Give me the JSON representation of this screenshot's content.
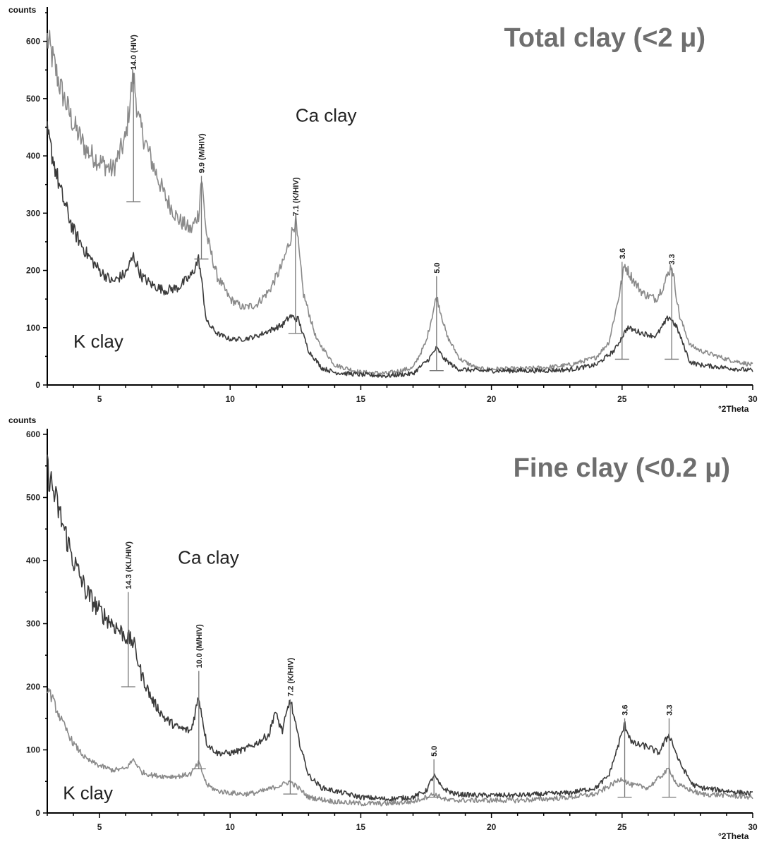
{
  "chart_data": [
    {
      "type": "line",
      "title": "Total clay (<2 μ)",
      "ylabel": "counts",
      "xlabel": "°2Theta",
      "xlim": [
        3,
        30
      ],
      "ylim": [
        0,
        650
      ],
      "xticks": [
        5,
        10,
        15,
        20,
        25,
        30
      ],
      "yticks": [
        0,
        100,
        200,
        300,
        400,
        500,
        600
      ],
      "grid": false,
      "series": [
        {
          "name": "Ca clay",
          "color": "#8a8a8a",
          "x": [
            3,
            3.5,
            4,
            4.5,
            5,
            5.5,
            6,
            6.2,
            6.3,
            6.5,
            7,
            7.5,
            8,
            8.5,
            8.8,
            8.9,
            9.1,
            9.5,
            10,
            10.5,
            11,
            11.5,
            12,
            12.3,
            12.5,
            12.8,
            13.3,
            14,
            15,
            16,
            17,
            17.5,
            17.9,
            18.3,
            18.8,
            19.5,
            20,
            21,
            22,
            23,
            24,
            24.5,
            24.9,
            25.1,
            25.4,
            25.8,
            26.3,
            26.6,
            26.9,
            27.2,
            27.6,
            28,
            29,
            30
          ],
          "y": [
            605,
            520,
            455,
            410,
            390,
            375,
            430,
            510,
            540,
            460,
            390,
            330,
            290,
            270,
            300,
            365,
            260,
            190,
            150,
            135,
            140,
            165,
            210,
            255,
            290,
            160,
            80,
            35,
            22,
            20,
            30,
            75,
            155,
            85,
            45,
            28,
            28,
            28,
            30,
            35,
            48,
            75,
            160,
            210,
            185,
            160,
            150,
            175,
            210,
            120,
            70,
            60,
            45,
            35
          ]
        },
        {
          "name": "K clay",
          "color": "#3a3a3a",
          "x": [
            3,
            3.5,
            4,
            4.5,
            5,
            5.5,
            6,
            6.3,
            6.6,
            7,
            7.5,
            8,
            8.5,
            8.8,
            9.1,
            9.5,
            10,
            10.5,
            11,
            11.5,
            12,
            12.3,
            12.6,
            13,
            13.5,
            14,
            15,
            16,
            17,
            17.6,
            17.9,
            18.2,
            18.7,
            19.5,
            20,
            21,
            22,
            23,
            24,
            24.7,
            25.2,
            25.8,
            26.3,
            26.8,
            27.1,
            27.6,
            28,
            29,
            30
          ],
          "y": [
            440,
            340,
            270,
            230,
            200,
            180,
            195,
            225,
            190,
            175,
            165,
            170,
            190,
            220,
            110,
            90,
            80,
            80,
            85,
            95,
            105,
            120,
            115,
            60,
            30,
            22,
            18,
            16,
            20,
            45,
            65,
            45,
            28,
            25,
            25,
            25,
            25,
            27,
            35,
            60,
            100,
            90,
            85,
            120,
            100,
            40,
            35,
            30,
            25
          ]
        }
      ],
      "annotations": [
        {
          "x": 6.3,
          "label": "14.0 (HIV)",
          "top": 545,
          "bottom": 320
        },
        {
          "x": 8.9,
          "label": "9.9 (M/HIV)",
          "top": 365,
          "bottom": 220
        },
        {
          "x": 12.5,
          "label": "7.1 (K/HIV)",
          "top": 290,
          "bottom": 90
        },
        {
          "x": 17.9,
          "label": "5.0",
          "top": 190,
          "bottom": 25
        },
        {
          "x": 25.0,
          "label": "3.6",
          "top": 215,
          "bottom": 45
        },
        {
          "x": 26.9,
          "label": "3.3",
          "top": 205,
          "bottom": 45
        }
      ],
      "series_labels": [
        {
          "text": "Ca clay",
          "x": 12.5,
          "y": 460
        },
        {
          "text": "K clay",
          "x": 4.0,
          "y": 65
        }
      ]
    },
    {
      "type": "line",
      "title": "Fine clay (<0.2 μ)",
      "ylabel": "counts",
      "xlabel": "°2Theta",
      "xlim": [
        3,
        30
      ],
      "ylim": [
        0,
        600
      ],
      "xticks": [
        5,
        10,
        15,
        20,
        25,
        30
      ],
      "yticks": [
        0,
        100,
        200,
        300,
        400,
        500,
        600
      ],
      "grid": false,
      "series": [
        {
          "name": "Ca clay",
          "color": "#3a3a3a",
          "x": [
            3,
            3.5,
            4,
            4.5,
            5,
            5.5,
            6,
            6.3,
            6.6,
            7,
            7.5,
            8,
            8.5,
            8.8,
            9.1,
            9.5,
            10,
            10.5,
            11,
            11.5,
            11.7,
            12,
            12.3,
            12.6,
            13,
            13.5,
            14,
            15,
            16,
            17,
            17.5,
            17.8,
            18.1,
            18.6,
            19.5,
            20,
            21,
            22,
            23,
            24,
            24.5,
            25.1,
            25.4,
            26,
            26.4,
            26.8,
            27.2,
            27.7,
            28,
            29,
            30
          ],
          "y": [
            545,
            470,
            400,
            350,
            320,
            300,
            280,
            270,
            220,
            180,
            150,
            135,
            130,
            185,
            110,
            95,
            95,
            100,
            110,
            125,
            160,
            130,
            180,
            120,
            60,
            40,
            35,
            25,
            22,
            25,
            35,
            60,
            40,
            30,
            28,
            28,
            28,
            30,
            32,
            40,
            60,
            140,
            110,
            105,
            95,
            125,
            80,
            45,
            40,
            35,
            30
          ]
        },
        {
          "name": "K clay",
          "color": "#8a8a8a",
          "x": [
            3,
            3.5,
            4,
            4.5,
            5,
            5.5,
            6,
            6.3,
            6.6,
            7,
            7.5,
            8,
            8.5,
            8.8,
            9.1,
            9.5,
            10,
            10.5,
            11,
            11.5,
            12,
            12.3,
            12.6,
            13,
            14,
            15,
            16,
            17,
            17.8,
            18.3,
            19,
            20,
            21,
            22,
            23,
            24,
            25,
            25.3,
            26,
            26.8,
            27.1,
            28,
            29,
            30
          ],
          "y": [
            200,
            150,
            110,
            85,
            75,
            68,
            70,
            85,
            65,
            60,
            58,
            58,
            62,
            80,
            45,
            35,
            32,
            30,
            32,
            38,
            45,
            50,
            40,
            25,
            18,
            15,
            15,
            18,
            30,
            20,
            20,
            20,
            20,
            22,
            25,
            30,
            55,
            45,
            40,
            70,
            45,
            30,
            28,
            25
          ]
        }
      ],
      "annotations": [
        {
          "x": 6.1,
          "label": "14.3 (KL/HIV)",
          "top": 350,
          "bottom": 200
        },
        {
          "x": 8.8,
          "label": "10.0 (M/HIV)",
          "top": 225,
          "bottom": 70
        },
        {
          "x": 12.3,
          "label": "7.2 (K/HIV)",
          "top": 180,
          "bottom": 30
        },
        {
          "x": 17.8,
          "label": "5.0",
          "top": 85,
          "bottom": 25
        },
        {
          "x": 25.1,
          "label": "3.6",
          "top": 150,
          "bottom": 25
        },
        {
          "x": 26.8,
          "label": "3.3",
          "top": 150,
          "bottom": 25
        }
      ],
      "series_labels": [
        {
          "text": "Ca clay",
          "x": 8.0,
          "y": 395
        },
        {
          "text": "K clay",
          "x": 3.6,
          "y": 22
        }
      ]
    }
  ]
}
